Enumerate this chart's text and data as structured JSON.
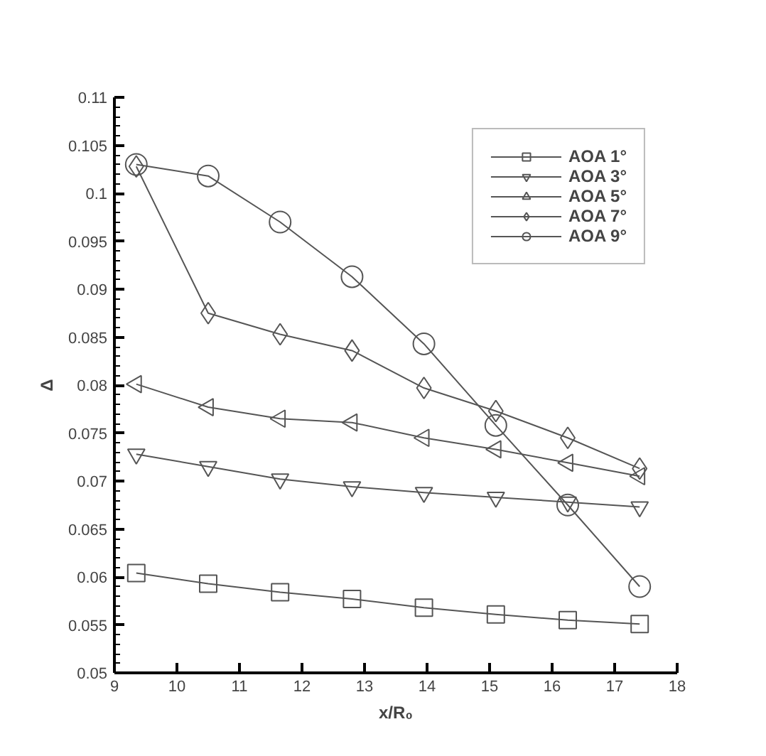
{
  "chart_data": {
    "type": "line",
    "xlabel": "x/R₀",
    "ylabel": "Δ",
    "x": [
      9.35,
      10.5,
      11.65,
      12.8,
      13.95,
      15.1,
      16.25,
      17.4
    ],
    "series": [
      {
        "name": "AOA 1°",
        "color": "#555555",
        "marker": "square",
        "values": [
          0.0604,
          0.0593,
          0.0584,
          0.0577,
          0.0568,
          0.0561,
          0.0555,
          0.0551
        ]
      },
      {
        "name": "AOA 3°",
        "color": "#555555",
        "marker": "triangle_down",
        "values": [
          0.0728,
          0.0715,
          0.0702,
          0.0694,
          0.0688,
          0.0683,
          0.0678,
          0.0673
        ]
      },
      {
        "name": "AOA 5°",
        "color": "#555555",
        "marker": "triangle_left",
        "values": [
          0.0801,
          0.0777,
          0.0765,
          0.0761,
          0.0745,
          0.0733,
          0.0719,
          0.0705
        ]
      },
      {
        "name": "AOA 7°",
        "color": "#555555",
        "marker": "diamond",
        "values": [
          0.1028,
          0.0875,
          0.0853,
          0.0836,
          0.0797,
          0.0773,
          0.0745,
          0.0713
        ]
      },
      {
        "name": "AOA 9°",
        "color": "#555555",
        "marker": "circle",
        "values": [
          0.103,
          0.1018,
          0.097,
          0.0913,
          0.0843,
          0.0758,
          0.0675,
          0.059
        ]
      }
    ],
    "xlim": [
      9,
      18
    ],
    "xticks": [
      9,
      10,
      11,
      12,
      13,
      14,
      15,
      16,
      17,
      18
    ],
    "ylim": [
      0.05,
      0.11
    ],
    "yticks": [
      0.05,
      0.055,
      0.06,
      0.065,
      0.07,
      0.075,
      0.08,
      0.085,
      0.09,
      0.095,
      0.1,
      0.105,
      0.11
    ],
    "grid": false,
    "legend": "top right",
    "line_style": "solid"
  }
}
